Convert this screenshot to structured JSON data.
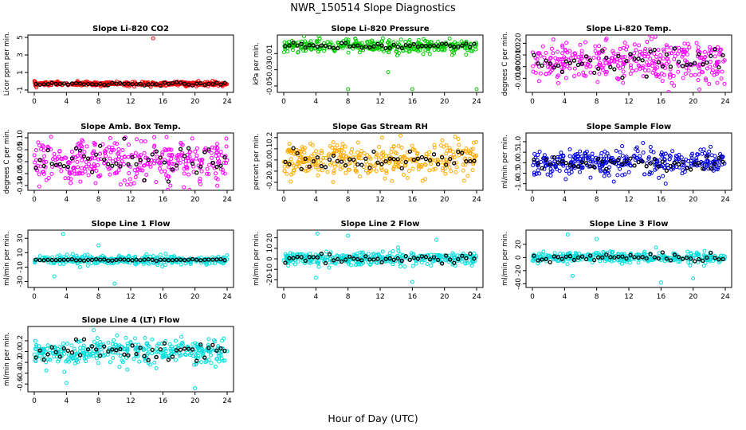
{
  "figure": {
    "title": "NWR_150514  Slope Diagnostics",
    "xlabel": "Hour of Day (UTC)"
  },
  "chart_data": [
    {
      "type": "scatter",
      "title": "Slope Li-820 CO2",
      "ylabel": "Licor ppm per min.",
      "color": "#ff0000",
      "xlim": [
        0,
        24
      ],
      "xticks": [
        0,
        4,
        8,
        12,
        16,
        20,
        24
      ],
      "ylim": [
        -1,
        5
      ],
      "yticks": [
        -1,
        1,
        3,
        5
      ],
      "center": -0.3,
      "spread": 0.12,
      "black_spread": 0.08,
      "outliers": [
        {
          "x": 14.8,
          "y": 4.9
        }
      ]
    },
    {
      "type": "scatter",
      "title": "Slope Li-820 Pressure",
      "ylabel": "kPa per min.",
      "color": "#00cc00",
      "xlim": [
        0,
        24
      ],
      "xticks": [
        0,
        4,
        8,
        12,
        16,
        20,
        24
      ],
      "ylim": [
        -0.055,
        0.01
      ],
      "yticks": [
        -0.05,
        -0.03,
        -0.01
      ],
      "yticklabels": [
        "-0.05",
        "-0.03",
        "-0.01"
      ],
      "center": -0.001,
      "spread": 0.004,
      "black_spread": 0.002,
      "outliers": [
        {
          "x": 8,
          "y": -0.054
        },
        {
          "x": 16,
          "y": -0.054
        },
        {
          "x": 24,
          "y": -0.054
        },
        {
          "x": 13,
          "y": -0.033
        }
      ]
    },
    {
      "type": "scatter",
      "title": "Slope Li-820 Temp.",
      "ylabel": "degrees C per min.",
      "color": "#ff00ff",
      "xlim": [
        0,
        24
      ],
      "xticks": [
        0,
        4,
        8,
        12,
        16,
        20,
        24
      ],
      "ylim": [
        -0.02,
        0.025
      ],
      "yticks": [
        -0.01,
        0,
        0.01,
        0.02
      ],
      "yticklabels": [
        "-0.010",
        "0.000",
        "0.010",
        "0.020"
      ],
      "center": 0.004,
      "spread": 0.009,
      "black_spread": 0.006,
      "outliers": []
    },
    {
      "type": "scatter",
      "title": "Slope Amb. Box Temp.",
      "ylabel": "degrees C per min.",
      "color": "#ff00ff",
      "xlim": [
        0,
        24
      ],
      "xticks": [
        0,
        4,
        8,
        12,
        16,
        20,
        24
      ],
      "ylim": [
        -0.11,
        0.11
      ],
      "yticks": [
        -0.1,
        -0.05,
        0,
        0.05,
        0.1
      ],
      "yticklabels": [
        "-0.10",
        "-0.05",
        "0.00",
        "0.05",
        "0.10"
      ],
      "center": 0,
      "spread": 0.045,
      "black_spread": 0.035,
      "outliers": []
    },
    {
      "type": "scatter",
      "title": "Slope Gas Stream RH",
      "ylabel": "percent per min.",
      "color": "#ffaa00",
      "xlim": [
        0,
        24
      ],
      "xticks": [
        0,
        4,
        8,
        12,
        16,
        20,
        24
      ],
      "ylim": [
        -0.25,
        0.22
      ],
      "yticks": [
        -0.2,
        -0.1,
        0,
        0.1,
        0.2
      ],
      "yticklabels": [
        "-0.2",
        "-0.1",
        "0.0",
        "0.1",
        "0.2"
      ],
      "center": 0,
      "spread": 0.08,
      "black_spread": 0.05,
      "outliers": []
    },
    {
      "type": "scatter",
      "title": "Slope Sample Flow",
      "ylabel": "ml/min per min.",
      "color": "#0000dd",
      "xlim": [
        0,
        24
      ],
      "xticks": [
        0,
        4,
        8,
        12,
        16,
        20,
        24
      ],
      "ylim": [
        -1.2,
        1.3
      ],
      "yticks": [
        -1,
        -0.5,
        0,
        0.5,
        1
      ],
      "yticklabels": [
        "-1.0",
        "-0.5",
        "0.0",
        "0.5",
        "1.0"
      ],
      "center": 0,
      "spread": 0.3,
      "black_spread": 0.15,
      "outliers": []
    },
    {
      "type": "scatter",
      "title": "Slope Line 1 Flow",
      "ylabel": "ml/min per min.",
      "color": "#00dddd",
      "xlim": [
        0,
        24
      ],
      "xticks": [
        0,
        4,
        8,
        12,
        16,
        20,
        24
      ],
      "ylim": [
        -35,
        38
      ],
      "yticks": [
        -30,
        -10,
        10,
        30
      ],
      "center": 0,
      "spread": 3,
      "black_spread": 0.5,
      "outliers": [
        {
          "x": 3.6,
          "y": 36
        },
        {
          "x": 8,
          "y": 20
        },
        {
          "x": 2.5,
          "y": -23
        },
        {
          "x": 10,
          "y": -33
        }
      ]
    },
    {
      "type": "scatter",
      "title": "Slope Line 2 Flow",
      "ylabel": "ml/min per min.",
      "color": "#00dddd",
      "xlim": [
        0,
        24
      ],
      "xticks": [
        0,
        4,
        8,
        12,
        16,
        20,
        24
      ],
      "ylim": [
        -25,
        25
      ],
      "yticks": [
        -20,
        -10,
        0,
        10,
        20
      ],
      "center": 0,
      "spread": 3,
      "black_spread": 2,
      "outliers": [
        {
          "x": 4.2,
          "y": 24
        },
        {
          "x": 8,
          "y": 22
        },
        {
          "x": 16,
          "y": -22
        },
        {
          "x": 4,
          "y": -18
        },
        {
          "x": 19,
          "y": 18
        }
      ]
    },
    {
      "type": "scatter",
      "title": "Slope Line 3 Flow",
      "ylabel": "ml/min per min.",
      "color": "#00dddd",
      "xlim": [
        0,
        24
      ],
      "xticks": [
        0,
        4,
        8,
        12,
        16,
        20,
        24
      ],
      "ylim": [
        -42,
        38
      ],
      "yticks": [
        -40,
        -20,
        0,
        20
      ],
      "center": 0,
      "spread": 4,
      "black_spread": 3,
      "outliers": [
        {
          "x": 4.4,
          "y": 35
        },
        {
          "x": 8,
          "y": 28
        },
        {
          "x": 16,
          "y": -38
        },
        {
          "x": 5,
          "y": -28
        },
        {
          "x": 20,
          "y": -32
        }
      ]
    },
    {
      "type": "scatter",
      "title": "Slope Line 4 (LT) Flow",
      "ylabel": "ml/min per min.",
      "color": "#00dddd",
      "xlim": [
        0,
        24
      ],
      "xticks": [
        0,
        4,
        8,
        12,
        16,
        20,
        24
      ],
      "ylim": [
        -0.7,
        0.42
      ],
      "yticks": [
        -0.6,
        -0.4,
        -0.2,
        0,
        0.2
      ],
      "yticklabels": [
        "-0.6",
        "-0.4",
        "-0.2",
        "0.0",
        "0.2"
      ],
      "center": 0,
      "spread": 0.12,
      "black_spread": 0.1,
      "outliers": [
        {
          "x": 4,
          "y": -0.58
        },
        {
          "x": 20,
          "y": -0.68
        },
        {
          "x": 1.5,
          "y": -0.35
        }
      ]
    }
  ]
}
